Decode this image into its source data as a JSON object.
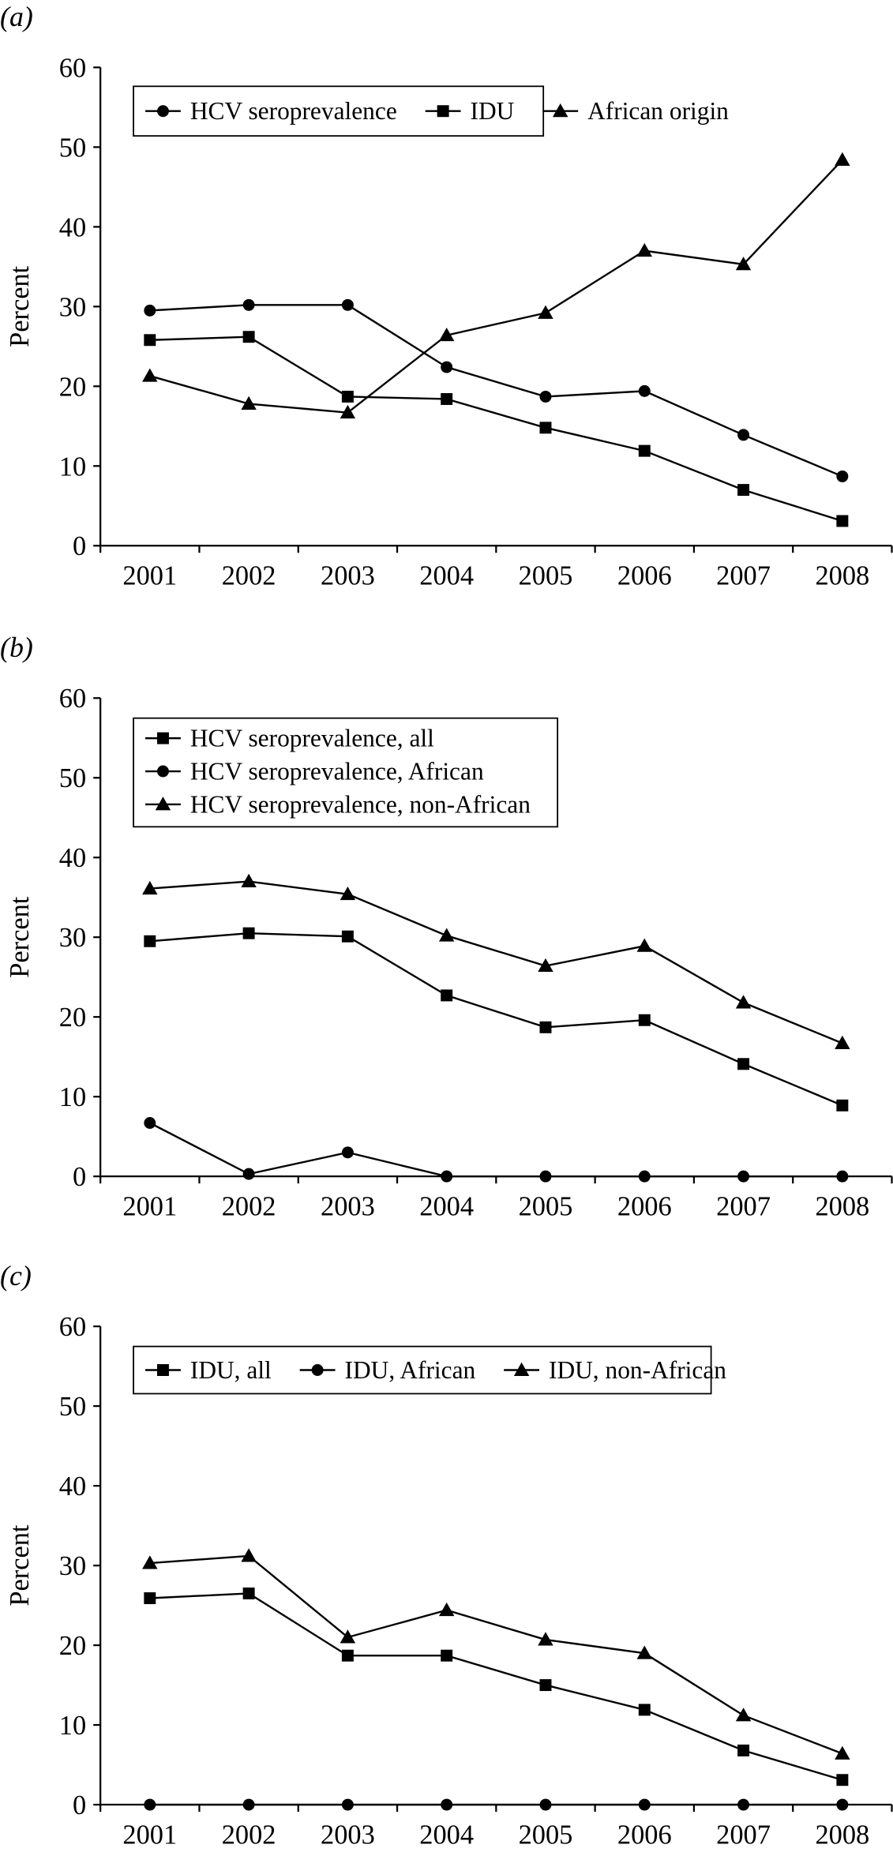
{
  "chart_data": [
    {
      "type": "line",
      "panel_label": "(a)",
      "ylabel": "Percent",
      "xlabel": "",
      "ylim": [
        0,
        60
      ],
      "yticks": [
        0,
        10,
        20,
        30,
        40,
        50,
        60
      ],
      "categories": [
        "2001",
        "2002",
        "2003",
        "2004",
        "2005",
        "2006",
        "2007",
        "2008"
      ],
      "legend_placement": "top-left",
      "legend_layout": "row",
      "grid": false,
      "series": [
        {
          "name": "HCV seroprevalence",
          "marker": "circle",
          "values": [
            29.5,
            30.2,
            30.2,
            22.4,
            18.7,
            19.4,
            13.9,
            8.7
          ]
        },
        {
          "name": "IDU",
          "marker": "square",
          "values": [
            25.8,
            26.2,
            18.7,
            18.4,
            14.8,
            11.9,
            7.0,
            3.1
          ]
        },
        {
          "name": "African origin",
          "marker": "triangle",
          "values": [
            21.3,
            17.8,
            16.7,
            26.4,
            29.2,
            37.0,
            35.3,
            48.4
          ]
        }
      ]
    },
    {
      "type": "line",
      "panel_label": "(b)",
      "ylabel": "Percent",
      "xlabel": "",
      "ylim": [
        0,
        60
      ],
      "yticks": [
        0,
        10,
        20,
        30,
        40,
        50,
        60
      ],
      "categories": [
        "2001",
        "2002",
        "2003",
        "2004",
        "2005",
        "2006",
        "2007",
        "2008"
      ],
      "legend_placement": "top-left",
      "legend_layout": "column",
      "grid": false,
      "series": [
        {
          "name": "HCV seroprevalence, all",
          "marker": "square",
          "values": [
            29.5,
            30.5,
            30.1,
            22.7,
            18.7,
            19.6,
            14.1,
            8.9
          ]
        },
        {
          "name": "HCV seroprevalence, African",
          "marker": "circle",
          "values": [
            6.7,
            0.3,
            3.0,
            0,
            0,
            0,
            0,
            0
          ]
        },
        {
          "name": "HCV seroprevalence, non-African",
          "marker": "triangle",
          "values": [
            36.1,
            37.0,
            35.4,
            30.2,
            26.4,
            28.9,
            21.8,
            16.7
          ]
        }
      ]
    },
    {
      "type": "line",
      "panel_label": "(c)",
      "ylabel": "Percent",
      "xlabel": "",
      "ylim": [
        0,
        60
      ],
      "yticks": [
        0,
        10,
        20,
        30,
        40,
        50,
        60
      ],
      "categories": [
        "2001",
        "2002",
        "2003",
        "2004",
        "2005",
        "2006",
        "2007",
        "2008"
      ],
      "legend_placement": "top-left",
      "legend_layout": "row",
      "grid": false,
      "series": [
        {
          "name": "IDU, all",
          "marker": "square",
          "values": [
            25.9,
            26.5,
            18.7,
            18.7,
            15.0,
            11.9,
            6.8,
            3.1
          ]
        },
        {
          "name": "IDU, African",
          "marker": "circle",
          "values": [
            0,
            0,
            0,
            0,
            0,
            0,
            0,
            0
          ]
        },
        {
          "name": "IDU, non-African",
          "marker": "triangle",
          "values": [
            30.3,
            31.2,
            21.0,
            24.4,
            20.7,
            19.0,
            11.2,
            6.4
          ]
        }
      ]
    }
  ]
}
